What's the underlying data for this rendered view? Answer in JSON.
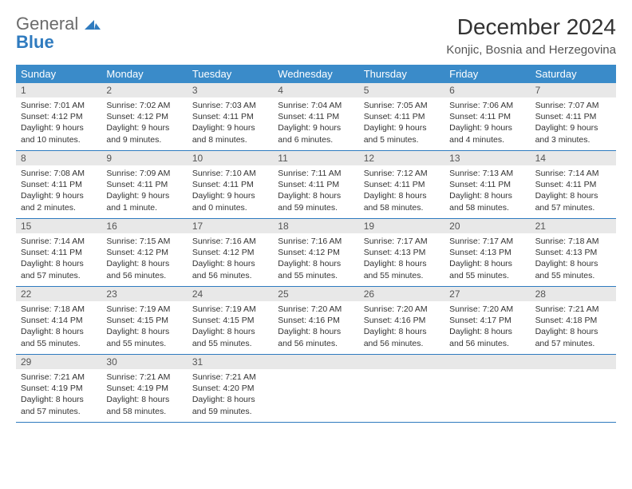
{
  "brand": {
    "line1": "General",
    "line2": "Blue"
  },
  "title": "December 2024",
  "location": "Konjic, Bosnia and Herzegovina",
  "colors": {
    "header_bg": "#3a8bc9",
    "header_fg": "#ffffff",
    "daynum_bg": "#e8e8e8",
    "row_border": "#2f7bbf",
    "brand_gray": "#6b6b6b",
    "brand_blue": "#2f7bbf",
    "text": "#333333",
    "background": "#ffffff"
  },
  "typography": {
    "title_fontsize": 28,
    "location_fontsize": 15,
    "weekday_fontsize": 13,
    "daynum_fontsize": 12,
    "body_fontsize": 10.5
  },
  "weekdays": [
    "Sunday",
    "Monday",
    "Tuesday",
    "Wednesday",
    "Thursday",
    "Friday",
    "Saturday"
  ],
  "weeks": [
    [
      {
        "num": "1",
        "sunrise": "Sunrise: 7:01 AM",
        "sunset": "Sunset: 4:12 PM",
        "daylight": "Daylight: 9 hours and 10 minutes."
      },
      {
        "num": "2",
        "sunrise": "Sunrise: 7:02 AM",
        "sunset": "Sunset: 4:12 PM",
        "daylight": "Daylight: 9 hours and 9 minutes."
      },
      {
        "num": "3",
        "sunrise": "Sunrise: 7:03 AM",
        "sunset": "Sunset: 4:11 PM",
        "daylight": "Daylight: 9 hours and 8 minutes."
      },
      {
        "num": "4",
        "sunrise": "Sunrise: 7:04 AM",
        "sunset": "Sunset: 4:11 PM",
        "daylight": "Daylight: 9 hours and 6 minutes."
      },
      {
        "num": "5",
        "sunrise": "Sunrise: 7:05 AM",
        "sunset": "Sunset: 4:11 PM",
        "daylight": "Daylight: 9 hours and 5 minutes."
      },
      {
        "num": "6",
        "sunrise": "Sunrise: 7:06 AM",
        "sunset": "Sunset: 4:11 PM",
        "daylight": "Daylight: 9 hours and 4 minutes."
      },
      {
        "num": "7",
        "sunrise": "Sunrise: 7:07 AM",
        "sunset": "Sunset: 4:11 PM",
        "daylight": "Daylight: 9 hours and 3 minutes."
      }
    ],
    [
      {
        "num": "8",
        "sunrise": "Sunrise: 7:08 AM",
        "sunset": "Sunset: 4:11 PM",
        "daylight": "Daylight: 9 hours and 2 minutes."
      },
      {
        "num": "9",
        "sunrise": "Sunrise: 7:09 AM",
        "sunset": "Sunset: 4:11 PM",
        "daylight": "Daylight: 9 hours and 1 minute."
      },
      {
        "num": "10",
        "sunrise": "Sunrise: 7:10 AM",
        "sunset": "Sunset: 4:11 PM",
        "daylight": "Daylight: 9 hours and 0 minutes."
      },
      {
        "num": "11",
        "sunrise": "Sunrise: 7:11 AM",
        "sunset": "Sunset: 4:11 PM",
        "daylight": "Daylight: 8 hours and 59 minutes."
      },
      {
        "num": "12",
        "sunrise": "Sunrise: 7:12 AM",
        "sunset": "Sunset: 4:11 PM",
        "daylight": "Daylight: 8 hours and 58 minutes."
      },
      {
        "num": "13",
        "sunrise": "Sunrise: 7:13 AM",
        "sunset": "Sunset: 4:11 PM",
        "daylight": "Daylight: 8 hours and 58 minutes."
      },
      {
        "num": "14",
        "sunrise": "Sunrise: 7:14 AM",
        "sunset": "Sunset: 4:11 PM",
        "daylight": "Daylight: 8 hours and 57 minutes."
      }
    ],
    [
      {
        "num": "15",
        "sunrise": "Sunrise: 7:14 AM",
        "sunset": "Sunset: 4:11 PM",
        "daylight": "Daylight: 8 hours and 57 minutes."
      },
      {
        "num": "16",
        "sunrise": "Sunrise: 7:15 AM",
        "sunset": "Sunset: 4:12 PM",
        "daylight": "Daylight: 8 hours and 56 minutes."
      },
      {
        "num": "17",
        "sunrise": "Sunrise: 7:16 AM",
        "sunset": "Sunset: 4:12 PM",
        "daylight": "Daylight: 8 hours and 56 minutes."
      },
      {
        "num": "18",
        "sunrise": "Sunrise: 7:16 AM",
        "sunset": "Sunset: 4:12 PM",
        "daylight": "Daylight: 8 hours and 55 minutes."
      },
      {
        "num": "19",
        "sunrise": "Sunrise: 7:17 AM",
        "sunset": "Sunset: 4:13 PM",
        "daylight": "Daylight: 8 hours and 55 minutes."
      },
      {
        "num": "20",
        "sunrise": "Sunrise: 7:17 AM",
        "sunset": "Sunset: 4:13 PM",
        "daylight": "Daylight: 8 hours and 55 minutes."
      },
      {
        "num": "21",
        "sunrise": "Sunrise: 7:18 AM",
        "sunset": "Sunset: 4:13 PM",
        "daylight": "Daylight: 8 hours and 55 minutes."
      }
    ],
    [
      {
        "num": "22",
        "sunrise": "Sunrise: 7:18 AM",
        "sunset": "Sunset: 4:14 PM",
        "daylight": "Daylight: 8 hours and 55 minutes."
      },
      {
        "num": "23",
        "sunrise": "Sunrise: 7:19 AM",
        "sunset": "Sunset: 4:15 PM",
        "daylight": "Daylight: 8 hours and 55 minutes."
      },
      {
        "num": "24",
        "sunrise": "Sunrise: 7:19 AM",
        "sunset": "Sunset: 4:15 PM",
        "daylight": "Daylight: 8 hours and 55 minutes."
      },
      {
        "num": "25",
        "sunrise": "Sunrise: 7:20 AM",
        "sunset": "Sunset: 4:16 PM",
        "daylight": "Daylight: 8 hours and 56 minutes."
      },
      {
        "num": "26",
        "sunrise": "Sunrise: 7:20 AM",
        "sunset": "Sunset: 4:16 PM",
        "daylight": "Daylight: 8 hours and 56 minutes."
      },
      {
        "num": "27",
        "sunrise": "Sunrise: 7:20 AM",
        "sunset": "Sunset: 4:17 PM",
        "daylight": "Daylight: 8 hours and 56 minutes."
      },
      {
        "num": "28",
        "sunrise": "Sunrise: 7:21 AM",
        "sunset": "Sunset: 4:18 PM",
        "daylight": "Daylight: 8 hours and 57 minutes."
      }
    ],
    [
      {
        "num": "29",
        "sunrise": "Sunrise: 7:21 AM",
        "sunset": "Sunset: 4:19 PM",
        "daylight": "Daylight: 8 hours and 57 minutes."
      },
      {
        "num": "30",
        "sunrise": "Sunrise: 7:21 AM",
        "sunset": "Sunset: 4:19 PM",
        "daylight": "Daylight: 8 hours and 58 minutes."
      },
      {
        "num": "31",
        "sunrise": "Sunrise: 7:21 AM",
        "sunset": "Sunset: 4:20 PM",
        "daylight": "Daylight: 8 hours and 59 minutes."
      },
      {
        "empty": true
      },
      {
        "empty": true
      },
      {
        "empty": true
      },
      {
        "empty": true
      }
    ]
  ]
}
